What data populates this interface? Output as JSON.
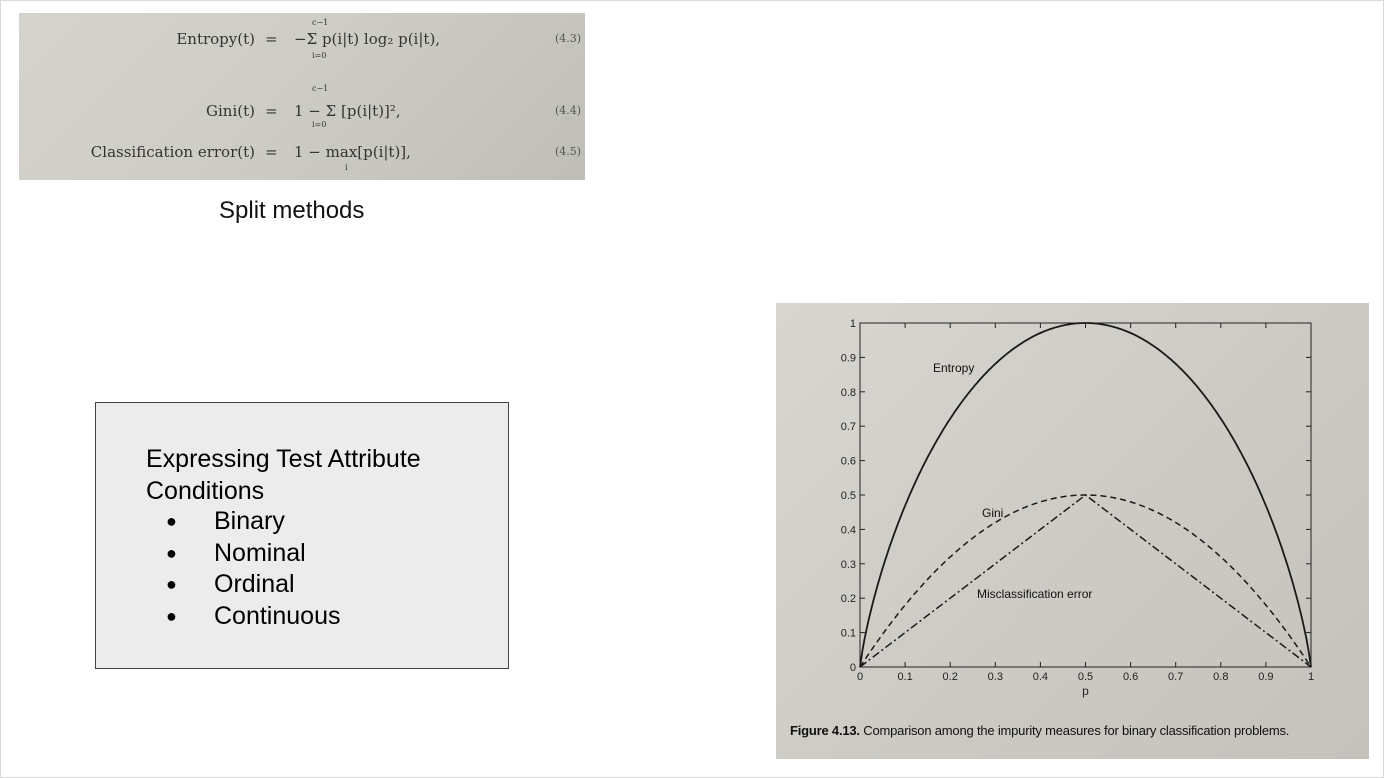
{
  "formulas": [
    {
      "lhs": "Entropy(t)",
      "eq": "=",
      "rhs": "−Σ p(i|t) log₂ p(i|t),",
      "top_limit": "c−1",
      "bottom_limit": "i=0",
      "number": "(4.3)"
    },
    {
      "lhs": "Gini(t)",
      "eq": "=",
      "rhs": "1 − Σ [p(i|t)]²,",
      "top_limit": "c−1",
      "bottom_limit": "i=0",
      "number": "(4.4)"
    },
    {
      "lhs": "Classification error(t)",
      "eq": "=",
      "rhs": "1 − max[p(i|t)],",
      "top_limit": "",
      "bottom_limit": "i",
      "number": "(4.5)"
    }
  ],
  "split_caption": "Split methods",
  "attr_box": {
    "title": "Expressing Test Attribute Conditions",
    "items": [
      "Binary",
      "Nominal",
      "Ordinal",
      "Continuous"
    ]
  },
  "figure": {
    "caption_label": "Figure 4.13.",
    "caption_text": "Comparison among the impurity measures for binary classification problems."
  },
  "chart_data": {
    "type": "line",
    "xlabel": "p",
    "ylabel": "",
    "xlim": [
      0,
      1
    ],
    "ylim": [
      0,
      1
    ],
    "x_ticks": [
      "0",
      "0.1",
      "0.2",
      "0.3",
      "0.4",
      "0.5",
      "0.6",
      "0.7",
      "0.8",
      "0.9",
      "1"
    ],
    "y_ticks": [
      "0",
      "0.1",
      "0.2",
      "0.3",
      "0.4",
      "0.5",
      "0.6",
      "0.7",
      "0.8",
      "0.9",
      "1"
    ],
    "x": [
      0,
      0.05,
      0.1,
      0.15,
      0.2,
      0.25,
      0.3,
      0.35,
      0.4,
      0.45,
      0.5,
      0.55,
      0.6,
      0.65,
      0.7,
      0.75,
      0.8,
      0.85,
      0.9,
      0.95,
      1
    ],
    "series": [
      {
        "name": "Entropy",
        "style": "solid",
        "values": [
          0,
          0.286,
          0.469,
          0.61,
          0.722,
          0.811,
          0.881,
          0.934,
          0.971,
          0.993,
          1,
          0.993,
          0.971,
          0.934,
          0.881,
          0.811,
          0.722,
          0.61,
          0.469,
          0.286,
          0
        ]
      },
      {
        "name": "Gini",
        "style": "dashed",
        "values": [
          0,
          0.095,
          0.18,
          0.255,
          0.32,
          0.375,
          0.42,
          0.455,
          0.48,
          0.495,
          0.5,
          0.495,
          0.48,
          0.455,
          0.42,
          0.375,
          0.32,
          0.255,
          0.18,
          0.095,
          0
        ]
      },
      {
        "name": "Misclassification error",
        "style": "dashdot",
        "values": [
          0,
          0.05,
          0.1,
          0.15,
          0.2,
          0.25,
          0.3,
          0.35,
          0.4,
          0.45,
          0.5,
          0.45,
          0.4,
          0.35,
          0.3,
          0.25,
          0.2,
          0.15,
          0.1,
          0.05,
          0
        ]
      }
    ],
    "annotations": [
      {
        "text": "Entropy",
        "x": 0.2,
        "y": 0.9
      },
      {
        "text": "Gini",
        "x": 0.3,
        "y": 0.45
      },
      {
        "text": "Misclassification error",
        "x": 0.4,
        "y": 0.2
      }
    ],
    "colors": {
      "line": "#1a1a1a",
      "axis": "#222222"
    }
  }
}
